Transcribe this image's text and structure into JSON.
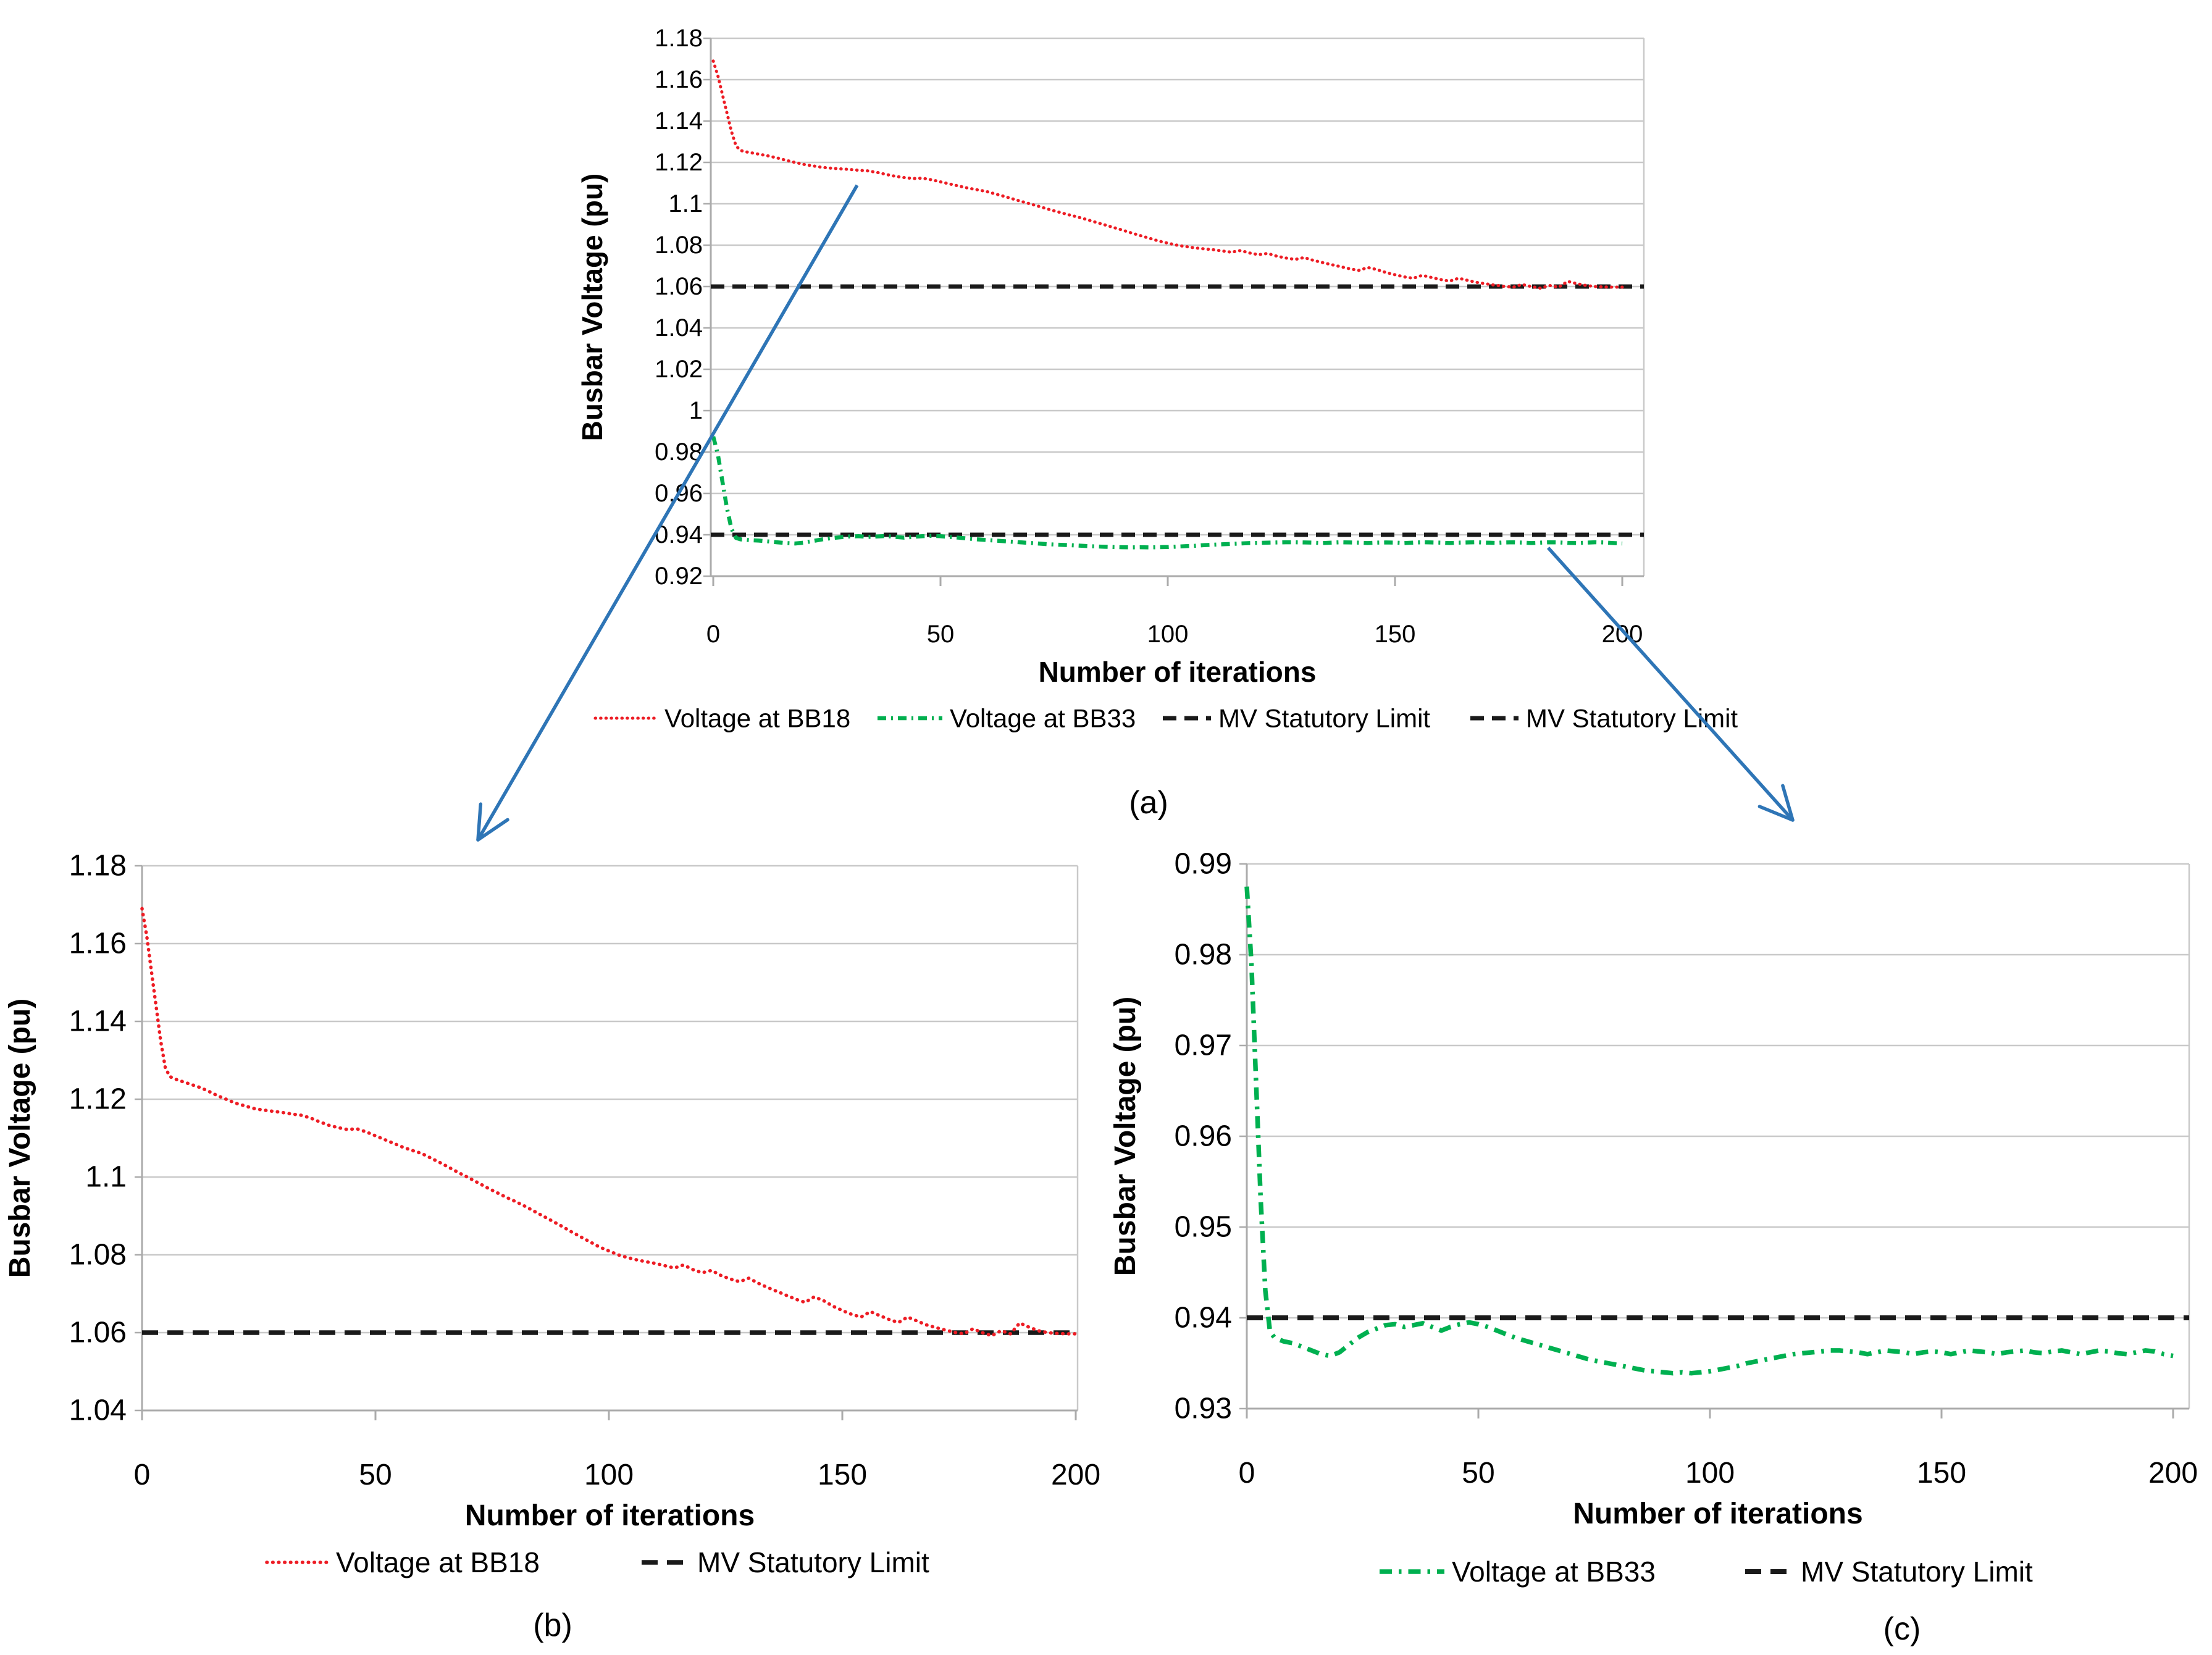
{
  "figure": {
    "xlabel": "Number of iterations",
    "ylabel": "Busbar Voltage (pu)",
    "captions": {
      "a": "(a)",
      "b": "(b)",
      "c": "(c)"
    }
  },
  "colors": {
    "bb18": "#ED1C24",
    "bb33": "#00B050",
    "limit": "#1A1A1A",
    "arrow": "#2E75B6",
    "grid": "#C9C9C9",
    "axis": "#ABABAB",
    "text": "#000000",
    "background": "#FFFFFF"
  },
  "series": {
    "bb18": {
      "label": "Voltage at BB18",
      "color": "#ED1C24",
      "dash": "dotted",
      "points": [
        [
          0,
          1.169
        ],
        [
          1,
          1.162
        ],
        [
          2,
          1.153
        ],
        [
          3,
          1.144
        ],
        [
          4,
          1.135
        ],
        [
          5,
          1.128
        ],
        [
          6,
          1.1258
        ],
        [
          7,
          1.1252
        ],
        [
          8,
          1.1248
        ],
        [
          10,
          1.124
        ],
        [
          12,
          1.1232
        ],
        [
          14,
          1.1222
        ],
        [
          16,
          1.121
        ],
        [
          18,
          1.12
        ],
        [
          20,
          1.119
        ],
        [
          22,
          1.1183
        ],
        [
          24,
          1.1176
        ],
        [
          26,
          1.1172
        ],
        [
          28,
          1.1169
        ],
        [
          30,
          1.1166
        ],
        [
          32,
          1.1162
        ],
        [
          34,
          1.1159
        ],
        [
          36,
          1.1152
        ],
        [
          38,
          1.1142
        ],
        [
          40,
          1.1133
        ],
        [
          42,
          1.1127
        ],
        [
          44,
          1.1122
        ],
        [
          46,
          1.1124
        ],
        [
          48,
          1.1116
        ],
        [
          50,
          1.1106
        ],
        [
          52,
          1.1096
        ],
        [
          54,
          1.1086
        ],
        [
          56,
          1.1076
        ],
        [
          58,
          1.1068
        ],
        [
          60,
          1.106
        ],
        [
          62,
          1.1048
        ],
        [
          64,
          1.1036
        ],
        [
          66,
          1.1023
        ],
        [
          68,
          1.101
        ],
        [
          70,
          1.0998
        ],
        [
          72,
          1.0985
        ],
        [
          74,
          1.0972
        ],
        [
          76,
          1.096
        ],
        [
          78,
          1.0948
        ],
        [
          80,
          1.0937
        ],
        [
          82,
          1.0925
        ],
        [
          84,
          1.0912
        ],
        [
          86,
          1.0899
        ],
        [
          88,
          1.0886
        ],
        [
          90,
          1.0873
        ],
        [
          92,
          1.0859
        ],
        [
          94,
          1.0846
        ],
        [
          96,
          1.0833
        ],
        [
          98,
          1.082
        ],
        [
          100,
          1.081
        ],
        [
          102,
          1.08
        ],
        [
          104,
          1.0793
        ],
        [
          106,
          1.0787
        ],
        [
          108,
          1.0782
        ],
        [
          110,
          1.0778
        ],
        [
          112,
          1.0772
        ],
        [
          114,
          1.0766
        ],
        [
          116,
          1.0774
        ],
        [
          118,
          1.0762
        ],
        [
          120,
          1.0754
        ],
        [
          122,
          1.076
        ],
        [
          124,
          1.0747
        ],
        [
          126,
          1.0738
        ],
        [
          128,
          1.0731
        ],
        [
          130,
          1.074
        ],
        [
          132,
          1.0727
        ],
        [
          134,
          1.0716
        ],
        [
          136,
          1.0706
        ],
        [
          138,
          1.0696
        ],
        [
          140,
          1.0686
        ],
        [
          142,
          1.0678
        ],
        [
          144,
          1.0692
        ],
        [
          146,
          1.0682
        ],
        [
          148,
          1.0668
        ],
        [
          150,
          1.0657
        ],
        [
          152,
          1.0647
        ],
        [
          154,
          1.064
        ],
        [
          156,
          1.0654
        ],
        [
          158,
          1.0644
        ],
        [
          160,
          1.0634
        ],
        [
          162,
          1.0626
        ],
        [
          164,
          1.064
        ],
        [
          166,
          1.063
        ],
        [
          168,
          1.062
        ],
        [
          170,
          1.0613
        ],
        [
          172,
          1.0607
        ],
        [
          174,
          1.0601
        ],
        [
          176,
          1.0597
        ],
        [
          178,
          1.061
        ],
        [
          180,
          1.06
        ],
        [
          182,
          1.0592
        ],
        [
          184,
          1.0605
        ],
        [
          186,
          1.0597
        ],
        [
          188,
          1.0625
        ],
        [
          190,
          1.0614
        ],
        [
          192,
          1.0605
        ],
        [
          194,
          1.06
        ],
        [
          196,
          1.0598
        ],
        [
          198,
          1.0597
        ],
        [
          200,
          1.0597
        ]
      ]
    },
    "bb33": {
      "label": "Voltage at BB33",
      "color": "#00B050",
      "dash": "dashdot",
      "points": [
        [
          0,
          0.9875
        ],
        [
          1,
          0.979
        ],
        [
          2,
          0.966
        ],
        [
          3,
          0.953
        ],
        [
          4,
          0.943
        ],
        [
          5,
          0.9385
        ],
        [
          6,
          0.9378
        ],
        [
          8,
          0.9374
        ],
        [
          10,
          0.9372
        ],
        [
          12,
          0.9368
        ],
        [
          14,
          0.9364
        ],
        [
          16,
          0.936
        ],
        [
          18,
          0.9358
        ],
        [
          20,
          0.9362
        ],
        [
          22,
          0.937
        ],
        [
          24,
          0.9378
        ],
        [
          26,
          0.9384
        ],
        [
          28,
          0.9388
        ],
        [
          30,
          0.9392
        ],
        [
          32,
          0.9393
        ],
        [
          34,
          0.939
        ],
        [
          36,
          0.9392
        ],
        [
          38,
          0.9394
        ],
        [
          40,
          0.939
        ],
        [
          42,
          0.9386
        ],
        [
          44,
          0.939
        ],
        [
          46,
          0.9393
        ],
        [
          48,
          0.9395
        ],
        [
          50,
          0.9393
        ],
        [
          52,
          0.939
        ],
        [
          54,
          0.9386
        ],
        [
          56,
          0.9382
        ],
        [
          58,
          0.9378
        ],
        [
          60,
          0.9375
        ],
        [
          62,
          0.9372
        ],
        [
          64,
          0.9369
        ],
        [
          66,
          0.9366
        ],
        [
          68,
          0.9363
        ],
        [
          70,
          0.936
        ],
        [
          72,
          0.9357
        ],
        [
          74,
          0.9354
        ],
        [
          76,
          0.9352
        ],
        [
          78,
          0.935
        ],
        [
          80,
          0.9348
        ],
        [
          82,
          0.9346
        ],
        [
          84,
          0.9344
        ],
        [
          86,
          0.9342
        ],
        [
          88,
          0.9341
        ],
        [
          90,
          0.934
        ],
        [
          92,
          0.9339
        ],
        [
          94,
          0.934
        ],
        [
          96,
          0.9339
        ],
        [
          98,
          0.934
        ],
        [
          100,
          0.9341
        ],
        [
          102,
          0.9343
        ],
        [
          104,
          0.9345
        ],
        [
          106,
          0.9347
        ],
        [
          108,
          0.935
        ],
        [
          110,
          0.9352
        ],
        [
          112,
          0.9354
        ],
        [
          114,
          0.9356
        ],
        [
          116,
          0.9358
        ],
        [
          118,
          0.936
        ],
        [
          120,
          0.9361
        ],
        [
          122,
          0.9362
        ],
        [
          124,
          0.9363
        ],
        [
          126,
          0.9364
        ],
        [
          128,
          0.9364
        ],
        [
          130,
          0.9363
        ],
        [
          132,
          0.9362
        ],
        [
          134,
          0.936
        ],
        [
          136,
          0.9362
        ],
        [
          138,
          0.9364
        ],
        [
          140,
          0.9363
        ],
        [
          142,
          0.9362
        ],
        [
          144,
          0.936
        ],
        [
          146,
          0.9362
        ],
        [
          148,
          0.9363
        ],
        [
          150,
          0.9362
        ],
        [
          152,
          0.936
        ],
        [
          154,
          0.9362
        ],
        [
          156,
          0.9364
        ],
        [
          158,
          0.9363
        ],
        [
          160,
          0.9362
        ],
        [
          162,
          0.936
        ],
        [
          164,
          0.9362
        ],
        [
          166,
          0.9363
        ],
        [
          168,
          0.9364
        ],
        [
          170,
          0.9362
        ],
        [
          172,
          0.9361
        ],
        [
          174,
          0.9363
        ],
        [
          176,
          0.9364
        ],
        [
          178,
          0.9362
        ],
        [
          180,
          0.936
        ],
        [
          182,
          0.9362
        ],
        [
          184,
          0.9364
        ],
        [
          186,
          0.9363
        ],
        [
          188,
          0.9361
        ],
        [
          190,
          0.936
        ],
        [
          192,
          0.9362
        ],
        [
          194,
          0.9364
        ],
        [
          196,
          0.9363
        ],
        [
          198,
          0.936
        ],
        [
          200,
          0.9358
        ]
      ]
    },
    "limit": {
      "label": "MV Statutory Limit",
      "color": "#1A1A1A",
      "dash": "dashed"
    }
  },
  "chart_data": [
    {
      "id": "a",
      "type": "line",
      "caption": "(a)",
      "xlabel": "Number of iterations",
      "ylabel": "Busbar Voltage (pu)",
      "xlim": [
        0,
        205
      ],
      "ylim": [
        0.92,
        1.18
      ],
      "xticks": [
        0,
        50,
        100,
        150,
        200
      ],
      "yticks": [
        1.18,
        1.16,
        1.14,
        1.12,
        1.1,
        1.08,
        1.06,
        1.04,
        1.02,
        1,
        0.98,
        0.96,
        0.94,
        0.92
      ],
      "ytick_labels": [
        "1.18",
        "1.16",
        "1.14",
        "1.12",
        "1.1",
        "1.08",
        "1.06",
        "1.04",
        "1.02",
        "1",
        "0.98",
        "0.96",
        "0.94",
        "0.92"
      ],
      "grid": true,
      "series_keys": [
        "bb18",
        "bb33"
      ],
      "limit_lines": [
        1.06,
        0.94
      ],
      "legend_position": "bottom",
      "legend": [
        "bb18",
        "bb33",
        "limit",
        "limit"
      ]
    },
    {
      "id": "b",
      "type": "line",
      "caption": "(b)",
      "xlabel": "Number of iterations",
      "ylabel": "Busbar Voltage (pu)",
      "xlim": [
        0,
        200
      ],
      "ylim": [
        1.04,
        1.18
      ],
      "xticks": [
        0,
        50,
        100,
        150,
        200
      ],
      "yticks": [
        1.18,
        1.16,
        1.14,
        1.12,
        1.1,
        1.08,
        1.06,
        1.04
      ],
      "ytick_labels": [
        "1.18",
        "1.16",
        "1.14",
        "1.12",
        "1.1",
        "1.08",
        "1.06",
        "1.04"
      ],
      "grid": true,
      "series_keys": [
        "bb18"
      ],
      "limit_lines": [
        1.06
      ],
      "legend_position": "bottom",
      "legend": [
        "bb18",
        "limit"
      ]
    },
    {
      "id": "c",
      "type": "line",
      "caption": "(c)",
      "xlabel": "Number of iterations",
      "ylabel": "Busbar Voltage (pu)",
      "xlim": [
        0,
        203
      ],
      "ylim": [
        0.93,
        0.99
      ],
      "xticks": [
        0,
        50,
        100,
        150,
        200
      ],
      "yticks": [
        0.99,
        0.98,
        0.97,
        0.96,
        0.95,
        0.94,
        0.93
      ],
      "ytick_labels": [
        "0.99",
        "0.98",
        "0.97",
        "0.96",
        "0.95",
        "0.94",
        "0.93"
      ],
      "grid": true,
      "series_keys": [
        "bb33"
      ],
      "limit_lines": [
        0.94
      ],
      "legend_position": "bottom",
      "legend": [
        "bb33",
        "limit"
      ]
    }
  ],
  "annotations": [
    {
      "name": "zoom-callout-arrow-to-b",
      "from_chart": "a",
      "to_chart": "b"
    },
    {
      "name": "zoom-callout-arrow-to-c",
      "from_chart": "a",
      "to_chart": "c"
    }
  ]
}
